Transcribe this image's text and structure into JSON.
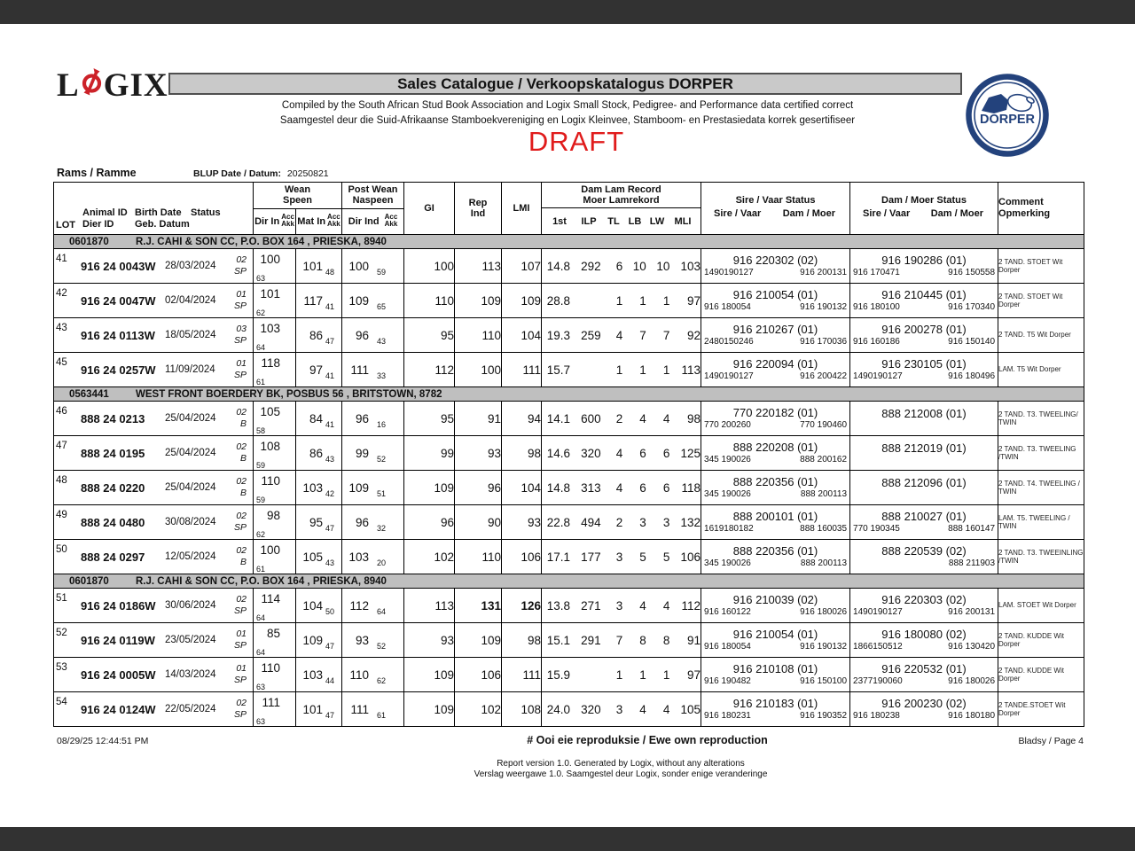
{
  "colors": {
    "bar_dark": "#323232",
    "title_bg": "#c9c9c9",
    "group_bg": "#bfbfbf",
    "draft_red": "#e01b1b",
    "logo_red": "#cc2229",
    "navy": "#23427c"
  },
  "header": {
    "logo_left": "L",
    "logo_right": "GIX",
    "title": "Sales Catalogue / Verkoopskatalogus DORPER",
    "subtitle1": "Compiled by the South African Stud Book Association and Logix Small Stock, Pedigree- and Performance data certified correct",
    "subtitle2": "Saamgestel deur die Suid-Afrikaanse Stamboekvereniging en Logix Kleinvee, Stamboom- en Prestasiedata korrek gesertifiseer",
    "draft": "DRAFT",
    "dorper_text": "DORPER"
  },
  "section_label": "Rams / Ramme",
  "blup": {
    "label": "BLUP Date / Datum:",
    "value": "20250821"
  },
  "table": {
    "head": {
      "lot": "LOT",
      "animal_id": [
        "Animal ID",
        "Dier ID"
      ],
      "birth_date": [
        "Birth Date",
        "Geb. Datum"
      ],
      "status": "Status",
      "wean": [
        "Wean",
        "Speen"
      ],
      "post_wean": [
        "Post Wean",
        "Naspeen"
      ],
      "dir_in": "Dir In",
      "mat_in": "Mat In",
      "dir_ind": "Dir Ind",
      "acc": [
        "Acc",
        "Akk"
      ],
      "gi": "GI",
      "rep_ind": [
        "Rep",
        "Ind"
      ],
      "lmi": "LMI",
      "dam_lam": [
        "Dam Lam Record",
        "Moer Lamrekord"
      ],
      "dam_lam_cols": [
        "1st",
        "ILP",
        "TL",
        "LB",
        "LW",
        "MLI"
      ],
      "sire_status": "Sire / Vaar Status",
      "dam_status": "Dam / Moer Status",
      "sub_sire": "Sire / Vaar",
      "sub_dam": "Dam / Moer",
      "comment": [
        "Comment",
        "Opmerking"
      ]
    },
    "sections": [
      {
        "group": {
          "id": "0601870",
          "name": "R.J. CAHI & SON CC, P.O. BOX 164 , PRIESKA, 8940"
        },
        "rows": [
          {
            "lot": "41",
            "id": "916 24 0043W",
            "birth": "28/03/2024",
            "status": [
              "02",
              "SP"
            ],
            "dir_in": [
              "100",
              "63"
            ],
            "mat_in": [
              "101",
              "48"
            ],
            "dir_ind": [
              "100",
              "59"
            ],
            "gi": "100",
            "rep": "113",
            "lmi": "107",
            "dam_lam": [
              "14.8",
              "292",
              "6",
              "10",
              "10",
              "103"
            ],
            "sire": {
              "main": "916 220302 (02)",
              "left": "1490190127",
              "right": "916 200131"
            },
            "dam": {
              "main": "916 190286 (01)",
              "left": "916 170471",
              "right": "916 150558"
            },
            "comment": "2 TAND. STOET Wit Dorper"
          },
          {
            "lot": "42",
            "id": "916 24 0047W",
            "birth": "02/04/2024",
            "status": [
              "01",
              "SP"
            ],
            "dir_in": [
              "101",
              "62"
            ],
            "mat_in": [
              "117",
              "41"
            ],
            "dir_ind": [
              "109",
              "65"
            ],
            "gi": "110",
            "rep": "109",
            "lmi": "109",
            "dam_lam": [
              "28.8",
              "",
              "1",
              "1",
              "1",
              "97"
            ],
            "sire": {
              "main": "916 210054 (01)",
              "left": "916 180054",
              "right": "916 190132"
            },
            "dam": {
              "main": "916 210445 (01)",
              "left": "916 180100",
              "right": "916 170340"
            },
            "comment": "2 TAND. STOET Wit Dorper"
          },
          {
            "lot": "43",
            "id": "916 24 0113W",
            "birth": "18/05/2024",
            "status": [
              "03",
              "SP"
            ],
            "dir_in": [
              "103",
              "64"
            ],
            "mat_in": [
              "86",
              "47"
            ],
            "dir_ind": [
              "96",
              "43"
            ],
            "gi": "95",
            "rep": "110",
            "lmi": "104",
            "dam_lam": [
              "19.3",
              "259",
              "4",
              "7",
              "7",
              "92"
            ],
            "sire": {
              "main": "916 210267 (01)",
              "left": "2480150246",
              "right": "916 170036"
            },
            "dam": {
              "main": "916 200278 (01)",
              "left": "916 160186",
              "right": "916 150140"
            },
            "comment": "2 TAND. T5 Wit Dorper"
          },
          {
            "lot": "45",
            "id": "916 24 0257W",
            "birth": "11/09/2024",
            "status": [
              "01",
              "SP"
            ],
            "dir_in": [
              "118",
              "61"
            ],
            "mat_in": [
              "97",
              "41"
            ],
            "dir_ind": [
              "111",
              "33"
            ],
            "gi": "112",
            "rep": "100",
            "lmi": "111",
            "dam_lam": [
              "15.7",
              "",
              "1",
              "1",
              "1",
              "113"
            ],
            "sire": {
              "main": "916 220094 (01)",
              "left": "1490190127",
              "right": "916 200422"
            },
            "dam": {
              "main": "916 230105 (01)",
              "left": "1490190127",
              "right": "916 180496"
            },
            "comment": "LAM. T5 Wit Dorper"
          }
        ]
      },
      {
        "group": {
          "id": "0563441",
          "name": "WEST FRONT BOERDERY BK, POSBUS 56 , BRITSTOWN, 8782"
        },
        "rows": [
          {
            "lot": "46",
            "id": "888 24 0213",
            "birth": "25/04/2024",
            "status": [
              "02",
              "B"
            ],
            "dir_in": [
              "105",
              "58"
            ],
            "mat_in": [
              "84",
              "41"
            ],
            "dir_ind": [
              "96",
              "16"
            ],
            "gi": "95",
            "rep": "91",
            "lmi": "94",
            "dam_lam": [
              "14.1",
              "600",
              "2",
              "4",
              "4",
              "98"
            ],
            "sire": {
              "main": "770 220182 (01)",
              "left": "770 200260",
              "right": "770 190460"
            },
            "dam": {
              "main": "888 212008 (01)",
              "left": "",
              "right": ""
            },
            "comment": "2 TAND. T3. TWEELING/ TWIN"
          },
          {
            "lot": "47",
            "id": "888 24 0195",
            "birth": "25/04/2024",
            "status": [
              "02",
              "B"
            ],
            "dir_in": [
              "108",
              "59"
            ],
            "mat_in": [
              "86",
              "43"
            ],
            "dir_ind": [
              "99",
              "52"
            ],
            "gi": "99",
            "rep": "93",
            "lmi": "98",
            "dam_lam": [
              "14.6",
              "320",
              "4",
              "6",
              "6",
              "125"
            ],
            "sire": {
              "main": "888 220208 (01)",
              "left": "345 190026",
              "right": "888 200162"
            },
            "dam": {
              "main": "888 212019 (01)",
              "left": "",
              "right": ""
            },
            "comment": "2 TAND. T3. TWEELING /TWIN"
          },
          {
            "lot": "48",
            "id": "888 24 0220",
            "birth": "25/04/2024",
            "status": [
              "02",
              "B"
            ],
            "dir_in": [
              "110",
              "59"
            ],
            "mat_in": [
              "103",
              "42"
            ],
            "dir_ind": [
              "109",
              "51"
            ],
            "gi": "109",
            "rep": "96",
            "lmi": "104",
            "dam_lam": [
              "14.8",
              "313",
              "4",
              "6",
              "6",
              "118"
            ],
            "sire": {
              "main": "888 220356 (01)",
              "left": "345 190026",
              "right": "888 200113"
            },
            "dam": {
              "main": "888 212096 (01)",
              "left": "",
              "right": ""
            },
            "comment": "2 TAND. T4. TWEELING / TWIN"
          },
          {
            "lot": "49",
            "id": "888 24 0480",
            "birth": "30/08/2024",
            "status": [
              "02",
              "SP"
            ],
            "dir_in": [
              "98",
              "62"
            ],
            "mat_in": [
              "95",
              "47"
            ],
            "dir_ind": [
              "96",
              "32"
            ],
            "gi": "96",
            "rep": "90",
            "lmi": "93",
            "dam_lam": [
              "22.8",
              "494",
              "2",
              "3",
              "3",
              "132"
            ],
            "sire": {
              "main": "888 200101 (01)",
              "left": "1619180182",
              "right": "888 160035"
            },
            "dam": {
              "main": "888 210027 (01)",
              "left": "770 190345",
              "right": "888 160147"
            },
            "comment": "LAM. T5. TWEELING / TWIN"
          },
          {
            "lot": "50",
            "id": "888 24 0297",
            "birth": "12/05/2024",
            "status": [
              "02",
              "B"
            ],
            "dir_in": [
              "100",
              "61"
            ],
            "mat_in": [
              "105",
              "43"
            ],
            "dir_ind": [
              "103",
              "20"
            ],
            "gi": "102",
            "rep": "110",
            "lmi": "106",
            "dam_lam": [
              "17.1",
              "177",
              "3",
              "5",
              "5",
              "106"
            ],
            "sire": {
              "main": "888 220356 (01)",
              "left": "345 190026",
              "right": "888 200113"
            },
            "dam": {
              "main": "888 220539 (02)",
              "left": "",
              "right": "888 211903"
            },
            "comment": "2 TAND. T3. TWEEINLING /TWIN"
          }
        ]
      },
      {
        "group": {
          "id": "0601870",
          "name": "R.J. CAHI & SON CC, P.O. BOX 164 , PRIESKA, 8940"
        },
        "rows": [
          {
            "lot": "51",
            "id": "916 24 0186W",
            "birth": "30/06/2024",
            "status": [
              "02",
              "SP"
            ],
            "dir_in": [
              "114",
              "64"
            ],
            "mat_in": [
              "104",
              "50"
            ],
            "dir_ind": [
              "112",
              "64"
            ],
            "gi": "113",
            "rep": "131",
            "lmi": "126",
            "rep_bold": true,
            "lmi_bold": true,
            "dam_lam": [
              "13.8",
              "271",
              "3",
              "4",
              "4",
              "112"
            ],
            "sire": {
              "main": "916 210039 (02)",
              "left": "916 160122",
              "right": "916 180026"
            },
            "dam": {
              "main": "916 220303 (02)",
              "left": "1490190127",
              "right": "916 200131"
            },
            "comment": "LAM. STOET Wit Dorper"
          },
          {
            "lot": "52",
            "id": "916 24 0119W",
            "birth": "23/05/2024",
            "status": [
              "01",
              "SP"
            ],
            "dir_in": [
              "85",
              "64"
            ],
            "mat_in": [
              "109",
              "47"
            ],
            "dir_ind": [
              "93",
              "52"
            ],
            "gi": "93",
            "rep": "109",
            "lmi": "98",
            "dam_lam": [
              "15.1",
              "291",
              "7",
              "8",
              "8",
              "91"
            ],
            "sire": {
              "main": "916 210054 (01)",
              "left": "916 180054",
              "right": "916 190132"
            },
            "dam": {
              "main": "916 180080 (02)",
              "left": "1866150512",
              "right": "916 130420"
            },
            "comment": "2 TAND. KUDDE Wit Dorper"
          },
          {
            "lot": "53",
            "id": "916 24 0005W",
            "birth": "14/03/2024",
            "status": [
              "01",
              "SP"
            ],
            "dir_in": [
              "110",
              "63"
            ],
            "mat_in": [
              "103",
              "44"
            ],
            "dir_ind": [
              "110",
              "62"
            ],
            "gi": "109",
            "rep": "106",
            "lmi": "111",
            "dam_lam": [
              "15.9",
              "",
              "1",
              "1",
              "1",
              "97"
            ],
            "sire": {
              "main": "916 210108 (01)",
              "left": "916 190482",
              "right": "916 150100"
            },
            "dam": {
              "main": "916 220532 (01)",
              "left": "2377190060",
              "right": "916 180026"
            },
            "comment": "2 TAND. KUDDE Wit Dorper"
          },
          {
            "lot": "54",
            "id": "916 24 0124W",
            "birth": "22/05/2024",
            "status": [
              "02",
              "SP"
            ],
            "dir_in": [
              "111",
              "63"
            ],
            "mat_in": [
              "101",
              "47"
            ],
            "dir_ind": [
              "111",
              "61"
            ],
            "gi": "109",
            "rep": "102",
            "lmi": "108",
            "dam_lam": [
              "24.0",
              "320",
              "3",
              "4",
              "4",
              "105"
            ],
            "sire": {
              "main": "916 210183 (01)",
              "left": "916 180231",
              "right": "916 190352"
            },
            "dam": {
              "main": "916 200230 (02)",
              "left": "916 180238",
              "right": "916 180180"
            },
            "comment": "2 TANDE.STOET Wit Dorper"
          }
        ]
      }
    ]
  },
  "footer": {
    "timestamp": "08/29/25 12:44:51 PM",
    "center": "# Ooi eie reproduksie / Ewe own reproduction",
    "page": "Bladsy / Page 4",
    "report_line1": "Report version  1.0. Generated by Logix, without any alterations",
    "report_line2": "Verslag weergawe 1.0. Saamgestel deur Logix, sonder enige veranderinge"
  }
}
